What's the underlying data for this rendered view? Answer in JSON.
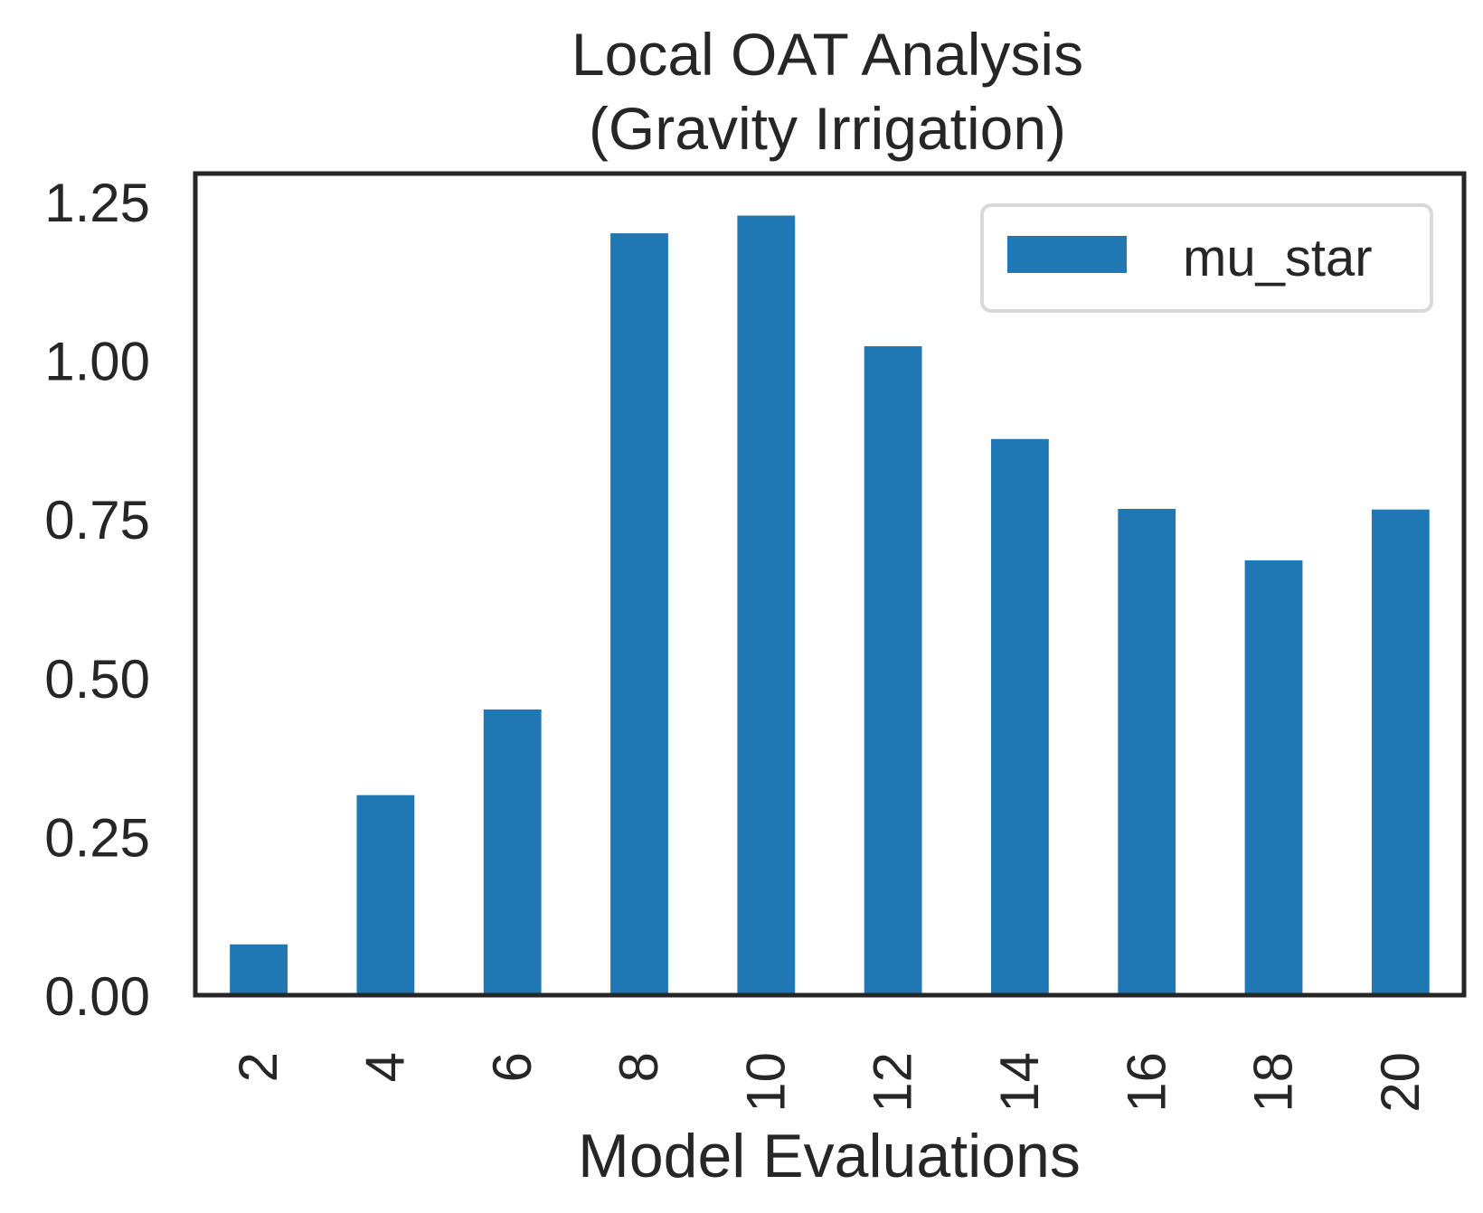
{
  "chart_data": {
    "type": "bar",
    "title": "Local OAT Analysis\n(Gravity Irrigation)",
    "xlabel": "Model Evaluations",
    "ylabel": "",
    "categories": [
      "2",
      "4",
      "6",
      "8",
      "10",
      "12",
      "14",
      "16",
      "18",
      "20"
    ],
    "series": [
      {
        "name": "mu_star",
        "values": [
          0.08,
          0.315,
          0.45,
          1.2,
          1.228,
          1.022,
          0.876,
          0.766,
          0.685,
          0.765
        ],
        "color": "#1f77b4"
      }
    ],
    "ylim": [
      0,
      1.3
    ],
    "yticks": [
      "0.00",
      "0.25",
      "0.50",
      "0.75",
      "1.00",
      "1.25"
    ],
    "grid": false,
    "legend": "top-right"
  }
}
